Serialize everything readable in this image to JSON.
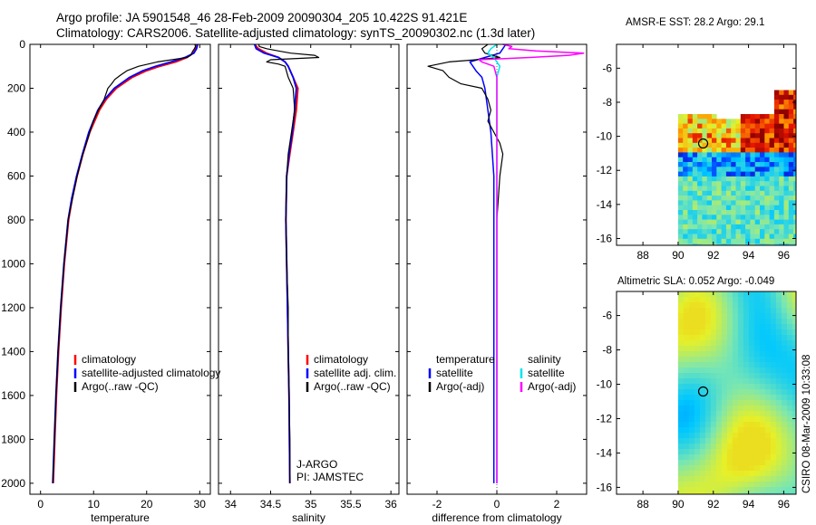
{
  "header": {
    "title_line1": "Argo profile: JA 5901548_46 28-Feb-2009 20090304_205 10.422S 91.421E",
    "title_line2": "Climatology: CARS2006. Satellite-adjusted climatology: synTS_20090302.nc (1.3d later)"
  },
  "side_label": "CSIRO 08-Mar-2009 10:33:08",
  "colors": {
    "red": "#ff0000",
    "blue": "#0000ff",
    "black": "#000000",
    "cyan": "#00e5ee",
    "magenta": "#ff00ff"
  },
  "chart_data": [
    {
      "id": "temperature",
      "type": "line",
      "xlabel": "temperature",
      "ylabel": "",
      "xlim": [
        -2,
        32
      ],
      "ylim": [
        2050,
        0
      ],
      "xticks": [
        0,
        10,
        20,
        30
      ],
      "xticklabels": [
        "0",
        "10",
        "20",
        "30"
      ],
      "yticks": [
        0,
        200,
        400,
        600,
        800,
        1000,
        1200,
        1400,
        1600,
        1800,
        2000
      ],
      "yticklabels": [
        "0",
        "200",
        "400",
        "600",
        "800",
        "1000",
        "1200",
        "1400",
        "1600",
        "1800",
        "2000"
      ],
      "legend": [
        "climatology",
        "satellite-adjusted climatology",
        "Argo(..raw -QC)"
      ],
      "series": [
        {
          "name": "climatology",
          "color": "red",
          "width": 1.8,
          "depth": [
            0,
            10,
            20,
            40,
            60,
            80,
            100,
            120,
            150,
            200,
            250,
            300,
            400,
            500,
            600,
            700,
            800,
            1000,
            1200,
            1400,
            1600,
            1800,
            2000
          ],
          "values": [
            29.3,
            29.3,
            29.2,
            28.8,
            27.6,
            25.5,
            22.5,
            20.0,
            17.3,
            14.3,
            12.4,
            11.1,
            9.3,
            8.0,
            6.9,
            6.0,
            5.3,
            4.5,
            3.9,
            3.4,
            3.0,
            2.7,
            2.4
          ]
        },
        {
          "name": "satellite-adjusted climatology",
          "color": "blue",
          "width": 1.8,
          "depth": [
            0,
            10,
            20,
            40,
            60,
            80,
            100,
            120,
            150,
            200,
            250,
            300,
            400,
            500,
            600,
            700,
            800,
            1000,
            1200,
            1400,
            1600,
            1800,
            2000
          ],
          "values": [
            29.6,
            29.5,
            29.4,
            28.9,
            27.2,
            24.6,
            21.7,
            19.3,
            16.8,
            13.9,
            12.1,
            10.8,
            9.1,
            7.9,
            6.8,
            5.9,
            5.2,
            4.4,
            3.8,
            3.3,
            2.9,
            2.6,
            2.3
          ]
        },
        {
          "name": "Argo(..raw -QC)",
          "color": "black",
          "width": 1.2,
          "depth": [
            0,
            10,
            20,
            30,
            40,
            50,
            60,
            80,
            100,
            120,
            140,
            160,
            180,
            200,
            250,
            300,
            350,
            400,
            500,
            600,
            800,
            1000,
            1200,
            1400,
            1600,
            1800,
            2000
          ],
          "values": [
            29.1,
            29.2,
            29.0,
            28.7,
            28.5,
            28.3,
            27.6,
            22.0,
            18.5,
            16.3,
            15.1,
            14.0,
            13.4,
            12.7,
            12.0,
            10.9,
            9.9,
            9.3,
            8.0,
            6.9,
            5.2,
            4.4,
            3.8,
            3.3,
            2.9,
            2.6,
            2.3
          ]
        }
      ]
    },
    {
      "id": "salinity",
      "type": "line",
      "xlabel": "salinity",
      "ylabel": "",
      "xlim": [
        33.85,
        36.1
      ],
      "ylim": [
        2050,
        0
      ],
      "xticks": [
        34,
        34.5,
        35,
        35.5,
        36
      ],
      "xticklabels": [
        "34",
        "34.5",
        "35",
        "35.5",
        "36"
      ],
      "yticks": [
        0,
        200,
        400,
        600,
        800,
        1000,
        1200,
        1400,
        1600,
        1800,
        2000
      ],
      "legend": [
        "climatology",
        "satellite adj. clim.",
        "Argo(..raw -QC)"
      ],
      "annotations": [
        "J-ARGO",
        "PI: JAMSTEC"
      ],
      "series": [
        {
          "name": "climatology",
          "color": "red",
          "width": 1.8,
          "depth": [
            0,
            20,
            40,
            60,
            80,
            100,
            150,
            200,
            300,
            400,
            500,
            600,
            800,
            1000,
            1200,
            1400,
            1600,
            2000
          ],
          "values": [
            34.3,
            34.35,
            34.45,
            34.6,
            34.68,
            34.72,
            34.78,
            34.84,
            34.82,
            34.78,
            34.74,
            34.7,
            34.69,
            34.7,
            34.71,
            34.72,
            34.73,
            34.74
          ]
        },
        {
          "name": "satellite adj. clim.",
          "color": "blue",
          "width": 1.8,
          "depth": [
            0,
            20,
            40,
            60,
            80,
            100,
            150,
            200,
            300,
            400,
            500,
            600,
            800,
            1000,
            1200,
            1400,
            1600,
            2000
          ],
          "values": [
            34.3,
            34.32,
            34.42,
            34.6,
            34.68,
            34.72,
            34.78,
            34.82,
            34.8,
            34.77,
            34.73,
            34.7,
            34.69,
            34.7,
            34.71,
            34.72,
            34.73,
            34.74
          ]
        },
        {
          "name": "Argo(..raw -QC)",
          "color": "black",
          "width": 1.2,
          "depth": [
            0,
            10,
            20,
            30,
            40,
            50,
            60,
            70,
            80,
            90,
            100,
            150,
            200,
            300,
            400,
            500,
            600,
            800,
            1000,
            1200,
            1400,
            1600,
            1800,
            2000
          ],
          "values": [
            34.35,
            34.36,
            34.45,
            34.6,
            34.75,
            35.05,
            35.1,
            34.5,
            34.45,
            34.6,
            34.68,
            34.72,
            34.78,
            34.8,
            34.76,
            34.72,
            34.7,
            34.69,
            34.7,
            34.72,
            34.72,
            34.73,
            34.74,
            34.74
          ]
        }
      ]
    },
    {
      "id": "difference",
      "type": "line",
      "xlabel": "difference from climatology",
      "ylabel": "",
      "xlim": [
        -3.0,
        3.0
      ],
      "ylim": [
        2050,
        0
      ],
      "xticks": [
        -2,
        0,
        2
      ],
      "xticklabels": [
        "-2",
        "0",
        "2"
      ],
      "yticks": [
        0,
        200,
        400,
        600,
        800,
        1000,
        1200,
        1400,
        1600,
        1800,
        2000
      ],
      "legend_left": [
        "temperature",
        "satellite",
        "Argo(-adj)"
      ],
      "legend_right": [
        "salinity",
        "satellite",
        "Argo(-adj)"
      ],
      "series": [
        {
          "name": "temperature satellite",
          "color": "blue",
          "width": 1.5,
          "depth": [
            0,
            20,
            40,
            60,
            80,
            100,
            120,
            150,
            200,
            300,
            400,
            600,
            800,
            1000,
            1500,
            2000
          ],
          "values": [
            0.3,
            0.2,
            0.1,
            -0.4,
            -0.9,
            -0.8,
            -0.7,
            -0.5,
            -0.4,
            -0.3,
            -0.2,
            -0.1,
            -0.1,
            -0.1,
            -0.1,
            -0.1
          ]
        },
        {
          "name": "temperature Argo(-adj)",
          "color": "black",
          "width": 1.2,
          "depth": [
            0,
            20,
            40,
            60,
            70,
            80,
            100,
            120,
            150,
            180,
            200,
            250,
            300,
            350,
            400,
            450,
            500,
            600,
            800,
            1000,
            1200,
            1400,
            1600,
            1800,
            2000
          ],
          "values": [
            -0.3,
            -0.5,
            -0.4,
            0.1,
            -0.7,
            -1.6,
            -2.3,
            -1.8,
            -1.6,
            -1.2,
            -0.5,
            -0.3,
            -0.2,
            -0.3,
            -0.1,
            0.1,
            0.2,
            0.1,
            0.0,
            0.0,
            0.0,
            0.0,
            0.0,
            0.0,
            0.0
          ]
        },
        {
          "name": "salinity satellite",
          "color": "cyan",
          "width": 1.5,
          "depth": [
            0,
            20,
            40,
            60,
            80,
            100,
            150,
            200,
            300,
            500,
            800,
            1000,
            1500,
            2000
          ],
          "values": [
            0.0,
            -0.2,
            -0.3,
            -0.1,
            0.0,
            0.1,
            0.0,
            0.0,
            0.0,
            0.0,
            0.0,
            0.0,
            0.0,
            0.0
          ]
        },
        {
          "name": "salinity Argo(-adj)",
          "color": "magenta",
          "width": 1.5,
          "depth": [
            0,
            10,
            20,
            30,
            40,
            50,
            60,
            70,
            80,
            100,
            150,
            200,
            300,
            500,
            800,
            1000,
            1500,
            2000
          ],
          "values": [
            0.2,
            0.5,
            0.4,
            1.3,
            2.9,
            2.4,
            1.1,
            -0.6,
            -0.5,
            -0.1,
            0.0,
            0.0,
            0.0,
            0.0,
            0.0,
            0.0,
            0.0,
            0.0
          ]
        }
      ]
    },
    {
      "id": "amsr_sst",
      "type": "heatmap",
      "title": "AMSR-E SST: 28.2  Argo: 29.1",
      "xlim": [
        86.5,
        96.7
      ],
      "ylim": [
        -16.4,
        -4.6
      ],
      "xticks": [
        88,
        90,
        92,
        94,
        96
      ],
      "xticklabels": [
        "88",
        "90",
        "92",
        "94",
        "96"
      ],
      "yticks": [
        -6,
        -8,
        -10,
        -12,
        -14,
        -16
      ],
      "yticklabels": [
        "-6",
        "-8",
        "-10",
        "-12",
        "-14",
        "-16"
      ],
      "data_extent_lon": [
        90.0,
        96.7
      ],
      "data_extent_lat": [
        -16.4,
        -7.0
      ],
      "argo_position": {
        "lon": 91.421,
        "lat": -10.422
      }
    },
    {
      "id": "altimetric_sla",
      "type": "heatmap",
      "title": "Altimetric SLA: 0.052  Argo: -0.049",
      "xlim": [
        86.5,
        96.7
      ],
      "ylim": [
        -16.4,
        -4.6
      ],
      "xticks": [
        88,
        90,
        92,
        94,
        96
      ],
      "xticklabels": [
        "88",
        "90",
        "92",
        "94",
        "96"
      ],
      "yticks": [
        -6,
        -8,
        -10,
        -12,
        -14,
        -16
      ],
      "yticklabels": [
        "-6",
        "-8",
        "-10",
        "-12",
        "-14",
        "-16"
      ],
      "data_extent_lon": [
        90.0,
        96.7
      ],
      "data_extent_lat": [
        -16.4,
        -4.6
      ],
      "argo_position": {
        "lon": 91.421,
        "lat": -10.422
      }
    }
  ]
}
